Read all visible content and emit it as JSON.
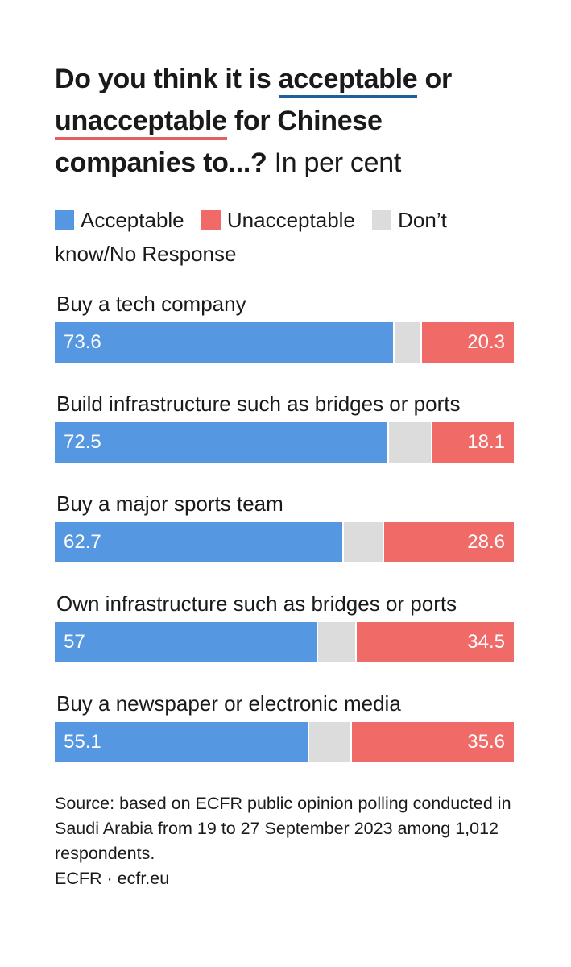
{
  "title": {
    "part1": "Do you think it is ",
    "accept_word": "acceptable",
    "part2": " or ",
    "unaccept_word": "unacceptable",
    "part3": " for Chinese companies to...?",
    "unit": " In per cent"
  },
  "legend": [
    {
      "label": "Acceptable",
      "color": "#5597e0"
    },
    {
      "label": "Unacceptable",
      "color": "#f06a68"
    },
    {
      "label": "Don’t know/No Response",
      "color": "#dcdcdc"
    }
  ],
  "colors": {
    "acceptable": "#5597e0",
    "unacceptable": "#f06a68",
    "dont_know": "#dcdcdc"
  },
  "chart_data": {
    "type": "bar",
    "orientation": "horizontal-stacked",
    "title": "Do you think it is acceptable or unacceptable for Chinese companies to...? In per cent",
    "categories": [
      "Buy a tech company",
      "Build infrastructure such as bridges or ports",
      "Buy a major sports team",
      "Own infrastructure such as bridges or ports",
      "Buy a newspaper or electronic media"
    ],
    "series": [
      {
        "name": "Acceptable",
        "values": [
          73.6,
          72.5,
          62.7,
          57,
          55.1
        ]
      },
      {
        "name": "Don’t know/No Response",
        "values": [
          6.1,
          9.4,
          8.7,
          8.5,
          9.3
        ]
      },
      {
        "name": "Unacceptable",
        "values": [
          20.3,
          18.1,
          28.6,
          34.5,
          35.6
        ]
      }
    ],
    "value_labels": {
      "acceptable": [
        "73.6",
        "72.5",
        "62.7",
        "57",
        "55.1"
      ],
      "unacceptable": [
        "20.3",
        "18.1",
        "28.6",
        "34.5",
        "35.6"
      ]
    },
    "xlim": [
      0,
      100
    ],
    "xlabel": "",
    "ylabel": ""
  },
  "source": {
    "text": "Source: based on ECFR public opinion polling conducted in Saudi Arabia from 19 to 27 September 2023 among 1,012 respondents.",
    "credit": "ECFR · ecfr.eu"
  }
}
